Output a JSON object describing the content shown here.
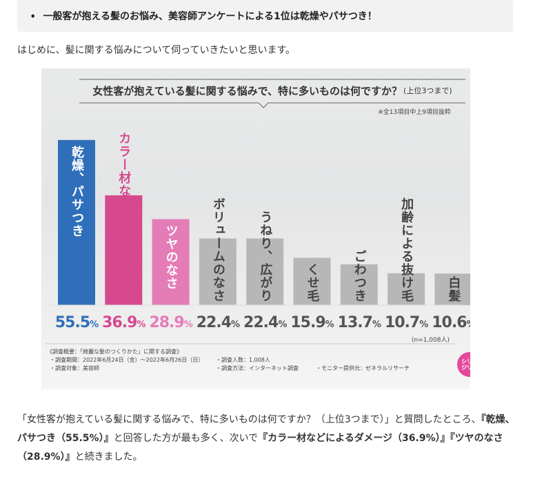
{
  "heading": {
    "bullet": "•",
    "text": "一般客が抱える髪のお悩み、美容師アンケートによる1位は乾燥やパサつき！"
  },
  "intro": "はじめに、髪に関する悩みについて伺っていきたいと思います。",
  "chart_data": {
    "type": "bar",
    "title": "女性客が抱えている髪に関する悩みで、特に多いものは何ですか？",
    "title_suffix": "(上位3つまで)",
    "note": "※全13項目中上9項目抜粋",
    "categories": [
      "乾燥、パサつき",
      "カラー材などによるダメージ",
      "ツヤのなさ",
      "ボリュームのなさ",
      "うねり、広がり",
      "くせ毛",
      "ごわつき",
      "加齢による抜け毛",
      "白髪"
    ],
    "values": [
      55.5,
      36.9,
      28.9,
      22.4,
      22.4,
      15.9,
      13.7,
      10.7,
      10.6
    ],
    "value_labels": [
      "55.5",
      "36.9",
      "28.9",
      "22.4",
      "22.4",
      "15.9",
      "13.7",
      "10.7",
      "10.6"
    ],
    "unit": "%",
    "colors": [
      "#2f6fba",
      "#d6498f",
      "#e47cb8",
      "#b7b7b7",
      "#b7b7b7",
      "#b7b7b7",
      "#b7b7b7",
      "#b7b7b7",
      "#b7b7b7"
    ],
    "label_colors": [
      "#ffffff",
      "#d6498f",
      "#ffffff",
      "#444444",
      "#444444",
      "#444444",
      "#444444",
      "#444444",
      "#444444"
    ],
    "value_colors": [
      "#2f6fba",
      "#d6498f",
      "#e47cb8",
      "#555555",
      "#555555",
      "#555555",
      "#555555",
      "#555555",
      "#555555"
    ],
    "ylim": [
      0,
      58
    ],
    "n_note": "(n=1,008人)"
  },
  "survey": {
    "heading": "《調査概要：「綺麗な髪のつくりかた」に関する調査》",
    "period": "・調査期間：2022年6月24日（金）〜2022年6月26日（日）",
    "target": "・調査対象：美容師",
    "count": "・調査人数：1,008人",
    "method": "・調査方法：インターネット調査",
    "provider": "・モニター提供元：ゼネラルリサーチ"
  },
  "logo": {
    "line1": "シリカ",
    "line2": "ジリカ"
  },
  "summary": {
    "p1": "「女性客が抱えている髪に関する悩みで、特に多いものは何ですか？（上位3つまで）」と質問したところ、",
    "b1": "『乾燥、パサつき（55.5%）』",
    "p2": "と回答した方が最も多く、次いで",
    "b2": "『カラー材などによるダメージ（36.9%）』『ツヤのなさ（28.9%）』",
    "p3": "と続きました。"
  }
}
